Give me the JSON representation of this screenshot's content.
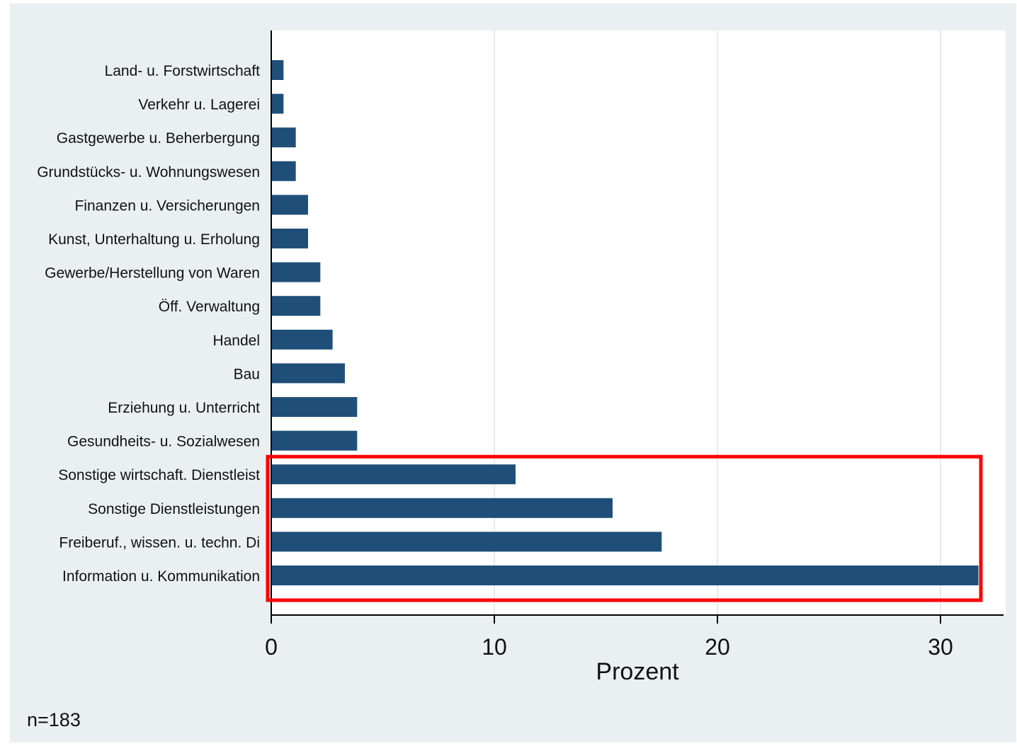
{
  "chart_data": {
    "type": "bar",
    "orientation": "horizontal",
    "categories": [
      "Land- u. Forstwirtschaft",
      "Verkehr u. Lagerei",
      "Gastgewerbe u. Beherbergung",
      "Grundstücks- u. Wohnungswesen",
      "Finanzen u. Versicherungen",
      "Kunst, Unterhaltung u. Erholung",
      "Gewerbe/Herstellung von Waren",
      "Öff. Verwaltung",
      "Handel",
      "Bau",
      "Erziehung u. Unterricht",
      "Gesundheits- u. Sozialwesen",
      "Sonstige wirtschaft. Dienstleist",
      "Sonstige Dienstleistungen",
      "Freiberuf., wissen. u. techn. Di",
      "Information u. Kommunikation"
    ],
    "values": [
      0.55,
      0.55,
      1.1,
      1.1,
      1.65,
      1.65,
      2.2,
      2.2,
      2.75,
      3.3,
      3.85,
      3.85,
      10.95,
      15.3,
      17.5,
      31.7
    ],
    "xlabel": "Prozent",
    "ylabel": "",
    "xlim": [
      0,
      32.8
    ],
    "xticks": [
      "0",
      "10",
      "20",
      "30"
    ],
    "grid": "vertical",
    "bar_color": "#1f4e79",
    "background_color": "#eaf0f2",
    "plot_background_color": "#ffffff",
    "grid_color": "#e4ecee",
    "highlight": {
      "categories": [
        "Sonstige wirtschaft. Dienstleist",
        "Sonstige Dienstleistungen",
        "Freiberuf., wissen. u. techn. Di",
        "Information u. Kommunikation"
      ],
      "color": "#ff0000"
    },
    "note": "n=183"
  }
}
